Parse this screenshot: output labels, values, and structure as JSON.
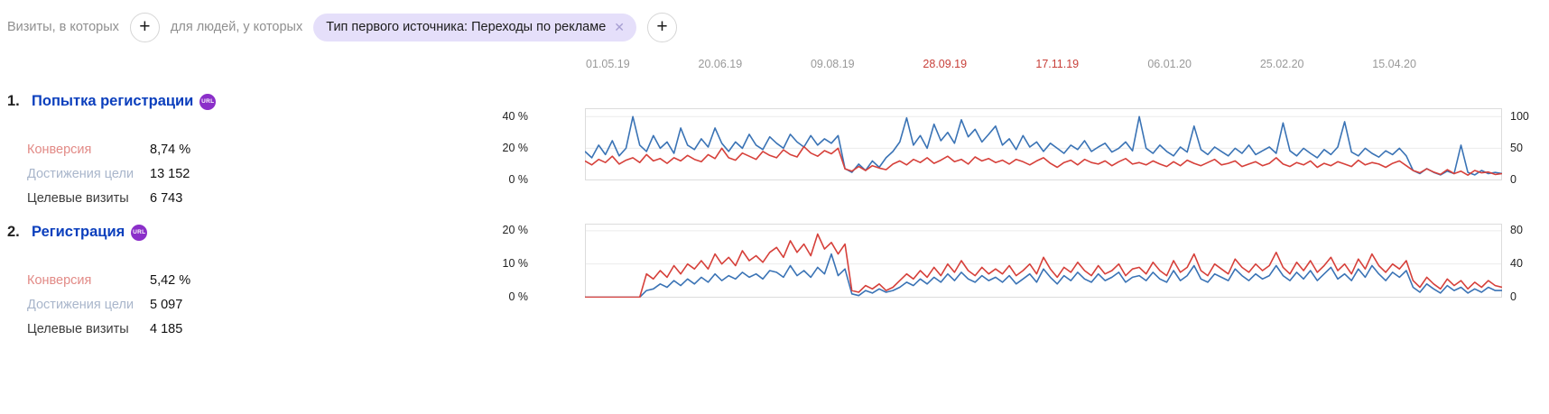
{
  "filter_bar": {
    "visits_label": "Визиты, в которых",
    "users_label": "для людей, у которых",
    "chip_label": "Тип первого источника: Переходы по рекламе",
    "chip_close": "✕",
    "add_button_glyph": "+"
  },
  "goals": [
    {
      "number": "1.",
      "title": "Попытка регистрации",
      "badge": "URL",
      "stats": [
        {
          "label": "Конверсия",
          "value": "8,74 %",
          "label_color": "#e28a86"
        },
        {
          "label": "Достижения цели",
          "value": "13 152",
          "label_color": "#a9b6cb"
        },
        {
          "label": "Целевые визиты",
          "value": "6 743",
          "label_color": "#3c3c3c"
        }
      ]
    },
    {
      "number": "2.",
      "title": "Регистрация",
      "badge": "URL",
      "stats": [
        {
          "label": "Конверсия",
          "value": "5,42 %",
          "label_color": "#e28a86"
        },
        {
          "label": "Достижения цели",
          "value": "5 097",
          "label_color": "#a9b6cb"
        },
        {
          "label": "Целевые визиты",
          "value": "4 185",
          "label_color": "#3c3c3c"
        }
      ]
    }
  ],
  "colors": {
    "conversion_line": "#d6403a",
    "reaches_line": "#3a73b5",
    "goal_link": "#0b3fbd",
    "badge": "#8b2fc9",
    "chip_bg": "#e5dffa",
    "tick_red": "#c8403a"
  },
  "chart_data": [
    {
      "type": "line",
      "title": "Попытка регистрации",
      "x_ticks": [
        {
          "label": "01.05.19",
          "pos": 0.025,
          "red": false
        },
        {
          "label": "20.06.19",
          "pos": 0.1475,
          "red": false
        },
        {
          "label": "09.08.19",
          "pos": 0.27,
          "red": false
        },
        {
          "label": "28.09.19",
          "pos": 0.3925,
          "red": true
        },
        {
          "label": "17.11.19",
          "pos": 0.515,
          "red": true
        },
        {
          "label": "06.01.20",
          "pos": 0.6375,
          "red": false
        },
        {
          "label": "25.02.20",
          "pos": 0.76,
          "red": false
        },
        {
          "label": "15.04.20",
          "pos": 0.8825,
          "red": false
        }
      ],
      "left_axis": {
        "max": 45,
        "gridlines": [
          {
            "value": 0,
            "label": "0 %"
          },
          {
            "value": 20,
            "label": "20 %"
          },
          {
            "value": 40,
            "label": "40 %"
          }
        ]
      },
      "right_axis": {
        "max": 112.5,
        "gridlines": [
          {
            "value": 0,
            "label": "0"
          },
          {
            "value": 50,
            "label": "50"
          },
          {
            "value": 100,
            "label": "100"
          }
        ]
      },
      "series": [
        {
          "name": "Достижения цели",
          "axis": "right",
          "color": "#3a73b5",
          "data_name": "goal1-reaches-line",
          "values": [
            45,
            35,
            55,
            40,
            62,
            38,
            50,
            100,
            55,
            45,
            70,
            50,
            60,
            42,
            82,
            55,
            48,
            65,
            52,
            82,
            58,
            45,
            60,
            50,
            72,
            55,
            48,
            68,
            58,
            50,
            72,
            60,
            52,
            70,
            55,
            65,
            58,
            70,
            18,
            12,
            25,
            15,
            30,
            20,
            35,
            45,
            60,
            98,
            55,
            70,
            50,
            88,
            62,
            75,
            58,
            95,
            68,
            80,
            60,
            72,
            85,
            55,
            65,
            48,
            70,
            52,
            60,
            45,
            58,
            50,
            42,
            55,
            48,
            62,
            45,
            52,
            58,
            44,
            50,
            60,
            46,
            100,
            50,
            42,
            55,
            45,
            38,
            52,
            44,
            85,
            48,
            40,
            52,
            45,
            38,
            50,
            42,
            55,
            40,
            46,
            52,
            42,
            90,
            46,
            38,
            50,
            42,
            35,
            48,
            40,
            52,
            92,
            44,
            38,
            50,
            42,
            36,
            46,
            40,
            50,
            38,
            15,
            10,
            18,
            12,
            8,
            14,
            10,
            55,
            12,
            8,
            15,
            10,
            12,
            10
          ]
        },
        {
          "name": "Конверсия",
          "axis": "left",
          "color": "#d6403a",
          "data_name": "goal1-conversion-line",
          "values": [
            12,
            9.5,
            13,
            11,
            15,
            10,
            12.5,
            14,
            11,
            16,
            12,
            13.5,
            10.5,
            14,
            12,
            15.5,
            13,
            11.5,
            16,
            13.5,
            20,
            14,
            12.5,
            17,
            15,
            13,
            18,
            15.5,
            14,
            19,
            16,
            14.5,
            21,
            17,
            15,
            18.5,
            16.5,
            20,
            7,
            5.5,
            8.5,
            6,
            9,
            7.5,
            6.5,
            10,
            12,
            9.5,
            13,
            11,
            14,
            10.5,
            12.5,
            15,
            11.5,
            13,
            10,
            14.5,
            12,
            13.5,
            11,
            12.5,
            10,
            13,
            11.5,
            9.5,
            12,
            14,
            10.5,
            8,
            11,
            12.5,
            9.5,
            13,
            11,
            10,
            12,
            9,
            11.5,
            13.5,
            10,
            11,
            9.5,
            12,
            10,
            8.5,
            11.5,
            9,
            12.5,
            10.5,
            9,
            11,
            13,
            9.5,
            10.5,
            12,
            8.5,
            10,
            11.5,
            9,
            10.5,
            14,
            10,
            8.5,
            11,
            9.5,
            12,
            8,
            10.5,
            9,
            11.5,
            10,
            8.5,
            12.5,
            9.5,
            11,
            10,
            8,
            10.5,
            12,
            9,
            6,
            4.5,
            7,
            5,
            3.5,
            6.5,
            4,
            5.5,
            3,
            6,
            4.5,
            5,
            3.5,
            4
          ]
        }
      ]
    },
    {
      "type": "line",
      "title": "Регистрация",
      "left_axis": {
        "max": 22,
        "gridlines": [
          {
            "value": 0,
            "label": "0 %"
          },
          {
            "value": 10,
            "label": "10 %"
          },
          {
            "value": 20,
            "label": "20 %"
          }
        ]
      },
      "right_axis": {
        "max": 88,
        "gridlines": [
          {
            "value": 0,
            "label": "0"
          },
          {
            "value": 40,
            "label": "40"
          },
          {
            "value": 80,
            "label": "80"
          }
        ]
      },
      "series": [
        {
          "name": "Достижения цели",
          "axis": "right",
          "color": "#3a73b5",
          "data_name": "goal2-reaches-line",
          "values": [
            0,
            0,
            0,
            0,
            0,
            0,
            0,
            0,
            0,
            8,
            10,
            16,
            12,
            20,
            14,
            22,
            16,
            24,
            18,
            28,
            20,
            26,
            22,
            30,
            24,
            28,
            22,
            32,
            30,
            24,
            38,
            26,
            32,
            24,
            36,
            28,
            52,
            26,
            34,
            4,
            2,
            8,
            5,
            10,
            6,
            8,
            12,
            18,
            14,
            22,
            16,
            24,
            18,
            28,
            20,
            30,
            22,
            18,
            26,
            20,
            24,
            18,
            26,
            16,
            22,
            28,
            18,
            34,
            24,
            16,
            26,
            20,
            30,
            22,
            18,
            28,
            20,
            24,
            30,
            18,
            24,
            26,
            20,
            30,
            22,
            18,
            32,
            20,
            26,
            38,
            22,
            18,
            28,
            24,
            20,
            34,
            26,
            20,
            28,
            22,
            26,
            38,
            26,
            20,
            30,
            22,
            32,
            20,
            28,
            36,
            22,
            28,
            20,
            34,
            24,
            38,
            28,
            20,
            30,
            24,
            32,
            12,
            6,
            16,
            10,
            5,
            14,
            8,
            12,
            5,
            10,
            6,
            12,
            8,
            8
          ]
        },
        {
          "name": "Конверсия",
          "axis": "left",
          "color": "#d6403a",
          "data_name": "goal2-conversion-line",
          "values": [
            0,
            0,
            0,
            0,
            0,
            0,
            0,
            0,
            0,
            7,
            5.5,
            8,
            6,
            9.5,
            7,
            10,
            8.5,
            11,
            8.5,
            13,
            10,
            12,
            9.5,
            14,
            11,
            12.5,
            10.5,
            13.5,
            15,
            12,
            17,
            13.5,
            16,
            12.5,
            19,
            14.5,
            16.5,
            13,
            16,
            2,
            1.5,
            3.5,
            2.5,
            4,
            2,
            3,
            5,
            7,
            5.5,
            8,
            6,
            9,
            6.5,
            10,
            7.5,
            11,
            8,
            6.5,
            9,
            7,
            8.5,
            7,
            9.5,
            6.5,
            8,
            10,
            7,
            12,
            8.5,
            6,
            9,
            7.5,
            10.5,
            8,
            6.5,
            9.5,
            7,
            8,
            10,
            6.5,
            8.5,
            9,
            7,
            10.5,
            8,
            6.5,
            11,
            7.5,
            9,
            13,
            8,
            6.5,
            10,
            8.5,
            7,
            11.5,
            9,
            7.5,
            10,
            8,
            9.5,
            13.5,
            9,
            7,
            10.5,
            8,
            11,
            7.5,
            9.5,
            12,
            8,
            10,
            7,
            11.5,
            8.5,
            13,
            9.5,
            7.5,
            10,
            8.5,
            11,
            5,
            3,
            6,
            4,
            2.5,
            5.5,
            3.5,
            5,
            2.5,
            4.5,
            3,
            5,
            3.5,
            3
          ]
        }
      ]
    }
  ]
}
